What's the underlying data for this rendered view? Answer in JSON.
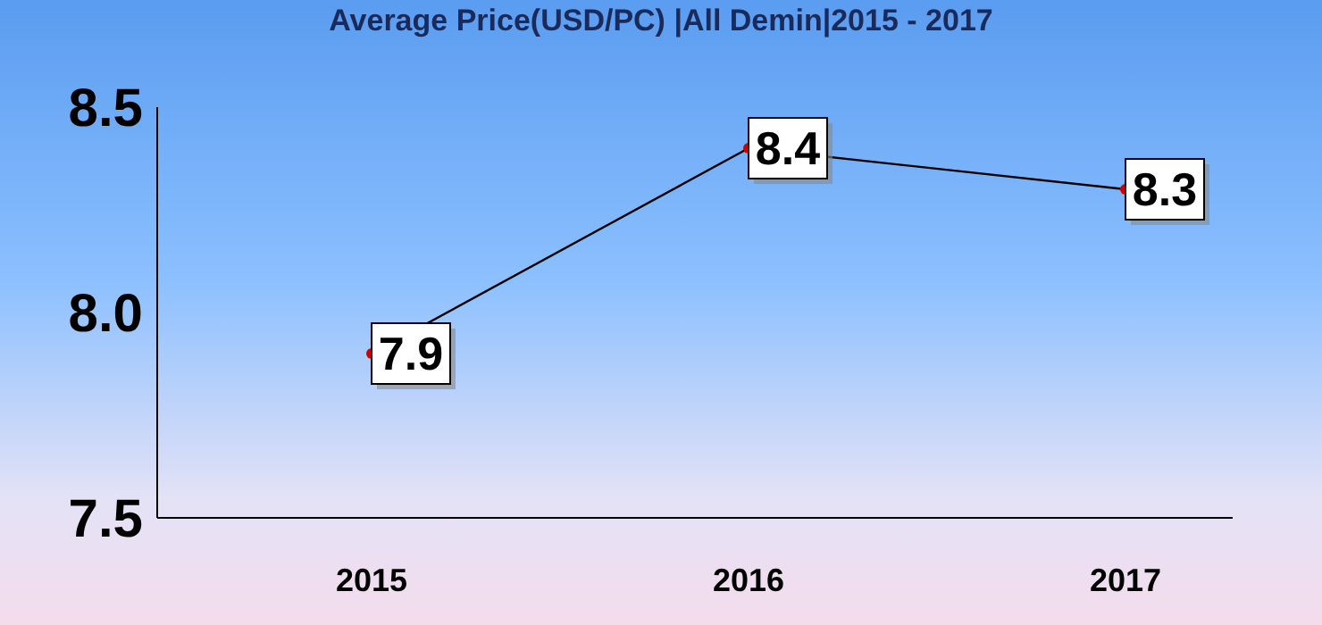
{
  "chart_data": {
    "type": "line",
    "title": "Average Price(USD/PC)  |All Demin|2015 - 2017",
    "categories": [
      "2015",
      "2016",
      "2017"
    ],
    "series": [
      {
        "color": "#000000",
        "colors": [
          "#d00000",
          "#d00000",
          "#d00000"
        ],
        "values": [
          7.9,
          8.4,
          8.3
        ]
      }
    ],
    "ylim": [
      7.5,
      8.5
    ],
    "yticks": [
      {
        "value": 7.5,
        "label": "7.5"
      },
      {
        "value": 8.0,
        "label": "8.0"
      },
      {
        "value": 8.5,
        "label": "8.5"
      }
    ],
    "grid": false,
    "legend": false,
    "marker": "circle",
    "line_style": "solid",
    "data_labels": true
  }
}
